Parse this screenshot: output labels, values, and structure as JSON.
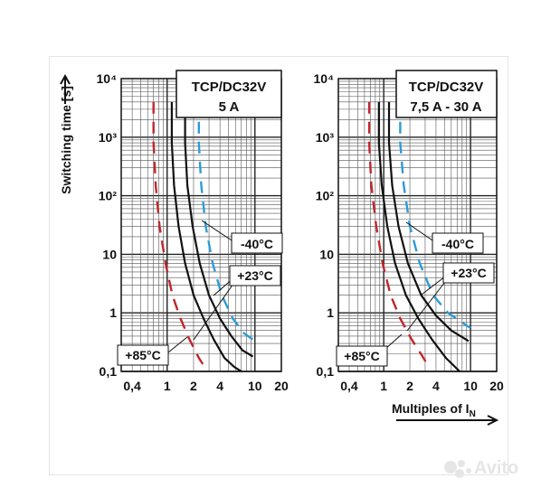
{
  "watermark": {
    "text": "Avito",
    "icon": "avito-dots-icon",
    "colors": [
      "#e6e6e6"
    ]
  },
  "chart_data": [
    {
      "type": "line",
      "title": "TCP/DC32V",
      "subtitle": "5 A",
      "ylabel": "Switching time [s]",
      "xlabel": "",
      "x_scale": "log",
      "y_scale": "log",
      "xlim": [
        0.3,
        20
      ],
      "ylim": [
        0.1,
        10000
      ],
      "grid": true,
      "x_ticks": [
        "0,4",
        "1",
        "2",
        "4",
        "10",
        "20"
      ],
      "y_ticks": [
        "0,1",
        "1",
        "10",
        "10²",
        "10³",
        "10⁴"
      ],
      "annotations": [
        "-40°C",
        "+23°C",
        "+85°C"
      ],
      "series": [
        {
          "style": "dashed",
          "color": "#c0262d",
          "x": [
            0.7,
            0.7,
            0.74,
            0.82,
            0.96,
            1.15,
            1.42,
            1.8,
            2.3,
            2.9
          ],
          "y": [
            4000,
            800,
            150,
            30,
            7,
            2,
            0.8,
            0.35,
            0.17,
            0.1
          ]
        },
        {
          "style": "solid",
          "color": "#111111",
          "x": [
            1.13,
            1.13,
            1.2,
            1.35,
            1.6,
            2.0,
            2.6,
            3.4,
            4.5,
            5.8,
            7.0
          ],
          "y": [
            4000,
            800,
            150,
            30,
            7,
            2,
            0.8,
            0.35,
            0.17,
            0.12,
            0.1
          ]
        },
        {
          "style": "solid",
          "color": "#111111",
          "x": [
            1.6,
            1.6,
            1.7,
            1.95,
            2.35,
            3.0,
            4.0,
            5.4,
            7.2,
            9.5
          ],
          "y": [
            4000,
            800,
            150,
            30,
            7,
            2,
            0.8,
            0.4,
            0.23,
            0.18
          ]
        },
        {
          "style": "dashed",
          "color": "#2e9bd6",
          "x": [
            2.3,
            2.3,
            2.45,
            2.75,
            3.3,
            4.2,
            5.6,
            7.5,
            9.5
          ],
          "y": [
            4000,
            800,
            150,
            30,
            7,
            2,
            0.8,
            0.45,
            0.35
          ]
        }
      ]
    },
    {
      "type": "line",
      "title": "TCP/DC32V",
      "subtitle": "7,5 A - 30 A",
      "ylabel": "",
      "xlabel": "Multiples of I",
      "xlabel_sub": "N",
      "x_scale": "log",
      "y_scale": "log",
      "xlim": [
        0.3,
        20
      ],
      "ylim": [
        0.1,
        10000
      ],
      "grid": true,
      "x_ticks": [
        "0,4",
        "1",
        "2",
        "4",
        "10",
        "20"
      ],
      "y_ticks": [
        "0,1",
        "1",
        "10",
        "10²",
        "10³",
        "10⁴"
      ],
      "annotations": [
        "-40°C",
        "+23°C",
        "+85°C"
      ],
      "series": [
        {
          "style": "dashed",
          "color": "#c0262d",
          "x": [
            0.68,
            0.68,
            0.72,
            0.82,
            0.97,
            1.2,
            1.55,
            2.1,
            2.8,
            3.2
          ],
          "y": [
            4000,
            800,
            150,
            30,
            7,
            2,
            0.8,
            0.35,
            0.18,
            0.13
          ]
        },
        {
          "style": "solid",
          "color": "#111111",
          "x": [
            0.88,
            0.88,
            0.95,
            1.1,
            1.35,
            1.8,
            2.5,
            3.6,
            5.2,
            7.5
          ],
          "y": [
            4000,
            800,
            150,
            30,
            7,
            2,
            0.8,
            0.35,
            0.17,
            0.1
          ]
        },
        {
          "style": "solid",
          "color": "#111111",
          "x": [
            1.15,
            1.15,
            1.25,
            1.48,
            1.9,
            2.7,
            4.0,
            6.0,
            9.5
          ],
          "y": [
            4000,
            800,
            150,
            30,
            7,
            2,
            0.9,
            0.5,
            0.33
          ]
        },
        {
          "style": "dashed",
          "color": "#2e9bd6",
          "x": [
            1.55,
            1.55,
            1.7,
            2.0,
            2.6,
            3.7,
            5.5,
            7.8,
            10.0
          ],
          "y": [
            4000,
            800,
            150,
            30,
            7,
            2,
            1.0,
            0.7,
            0.55
          ]
        }
      ]
    }
  ]
}
